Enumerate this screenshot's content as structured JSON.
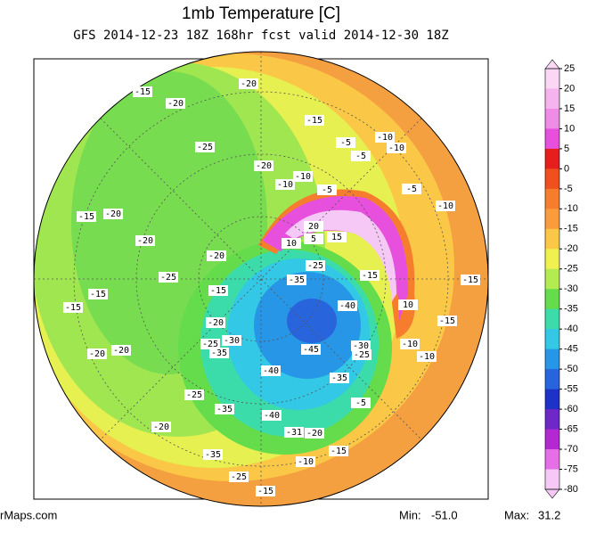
{
  "header": {
    "title": "1mb Temperature [C]",
    "subtitle": "GFS 2014-12-23 18Z 168hr fcst valid 2014-12-30 18Z"
  },
  "colorbar": {
    "ticks": [
      25,
      20,
      15,
      10,
      5,
      0,
      -5,
      -10,
      -15,
      -20,
      -25,
      -30,
      -35,
      -40,
      -45,
      -50,
      -55,
      -60,
      -65,
      -70,
      -75,
      -80
    ],
    "colors": [
      "#fad7f5",
      "#f5b4ee",
      "#ee8ce6",
      "#e650dc",
      "#e61e1e",
      "#f0501e",
      "#f57d2d",
      "#fa9b3c",
      "#fac846",
      "#f0f050",
      "#b4eb50",
      "#64dc4b",
      "#3cdcaa",
      "#32c8e6",
      "#2896e6",
      "#2864dc",
      "#1e32c8",
      "#6e28c8",
      "#b428d2",
      "#e66ee6",
      "#f5c8f5"
    ]
  },
  "contour_labels": [
    "-15",
    "-20",
    "-20",
    "-15",
    "-5",
    "-10",
    "-10",
    "-5",
    "-25",
    "-20",
    "-10",
    "-10",
    "-5",
    "-5",
    "-15",
    "-20",
    "-20",
    "-10",
    "20",
    "15",
    "10",
    "5",
    "-20",
    "-25",
    "-25",
    "-15",
    "-15",
    "-15",
    "-35",
    "-15",
    "-15",
    "-40",
    "10",
    "-15",
    "-20",
    "-25",
    "-30",
    "-35",
    "-45",
    "-30",
    "-25",
    "-10",
    "-10",
    "-20",
    "-20",
    "-40",
    "-35",
    "-25",
    "-5",
    "-35",
    "-40",
    "-20",
    "-31",
    "-20",
    "-15",
    "-35",
    "-10",
    "-25",
    "-15"
  ],
  "footer": {
    "source": "rMaps.com",
    "min_label": "Min:",
    "min": "-51.0",
    "max_label": "Max:",
    "max": "31.2"
  }
}
